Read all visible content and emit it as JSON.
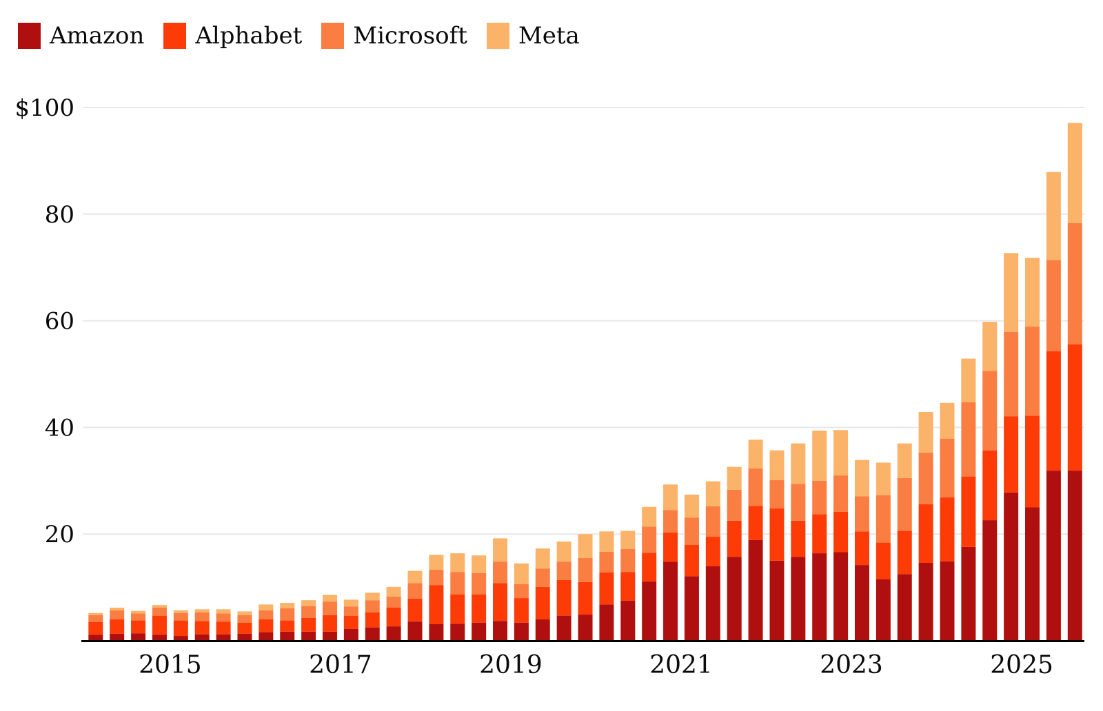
{
  "chart_data": {
    "type": "bar",
    "stacked": true,
    "title": "",
    "legend_position": "top-left",
    "grid": true,
    "ylim": [
      0,
      105
    ],
    "y_axis": {
      "tick_values": [
        20,
        40,
        60,
        80,
        100
      ],
      "tick_labels": [
        "20",
        "40",
        "60",
        "80",
        "$100"
      ]
    },
    "x_axis": {
      "tick_years": [
        2015,
        2017,
        2019,
        2021,
        2023,
        2025
      ],
      "tick_labels": [
        "2015",
        "2017",
        "2019",
        "2021",
        "2023",
        "2025"
      ]
    },
    "x": [
      "Q1 2014",
      "Q2 2014",
      "Q3 2014",
      "Q4 2014",
      "Q1 2015",
      "Q2 2015",
      "Q3 2015",
      "Q4 2015",
      "Q1 2016",
      "Q2 2016",
      "Q3 2016",
      "Q4 2016",
      "Q1 2017",
      "Q2 2017",
      "Q3 2017",
      "Q4 2017",
      "Q1 2018",
      "Q2 2018",
      "Q3 2018",
      "Q4 2018",
      "Q1 2019",
      "Q2 2019",
      "Q3 2019",
      "Q4 2019",
      "Q1 2020",
      "Q2 2020",
      "Q3 2020",
      "Q4 2020",
      "Q1 2021",
      "Q2 2021",
      "Q3 2021",
      "Q4 2021",
      "Q1 2022",
      "Q2 2022",
      "Q3 2022",
      "Q4 2022",
      "Q1 2023",
      "Q2 2023",
      "Q3 2023",
      "Q4 2023",
      "Q1 2024",
      "Q2 2024",
      "Q3 2024",
      "Q4 2024",
      "Q1 2025",
      "Q2 2025",
      "Q3 2025"
    ],
    "series": [
      {
        "name": "Amazon",
        "color": "#b00f0f",
        "values": [
          1.1,
          1.3,
          1.4,
          1.1,
          0.9,
          1.2,
          1.2,
          1.3,
          1.6,
          1.7,
          1.7,
          1.7,
          2.2,
          2.5,
          2.7,
          3.6,
          3.1,
          3.2,
          3.4,
          3.7,
          3.4,
          4.0,
          4.7,
          4.9,
          6.8,
          7.5,
          11.1,
          14.8,
          12.1,
          14.0,
          15.7,
          18.9,
          15.0,
          15.7,
          16.4,
          16.6,
          14.2,
          11.5,
          12.5,
          14.6,
          14.9,
          17.6,
          22.6,
          27.8,
          25.0,
          31.9,
          31.9
        ]
      },
      {
        "name": "Alphabet",
        "color": "#fd3b07",
        "values": [
          2.4,
          2.7,
          2.4,
          3.6,
          2.9,
          2.5,
          2.4,
          2.1,
          2.4,
          2.1,
          2.6,
          3.1,
          2.5,
          2.8,
          3.5,
          4.3,
          7.3,
          5.5,
          5.3,
          7.1,
          4.6,
          6.1,
          6.7,
          6.1,
          6.0,
          5.4,
          5.4,
          5.5,
          5.9,
          5.5,
          6.8,
          6.4,
          9.8,
          6.8,
          7.3,
          7.6,
          6.3,
          6.9,
          8.1,
          11.0,
          12.0,
          13.2,
          13.1,
          14.3,
          17.2,
          22.4,
          23.7
        ]
      },
      {
        "name": "Microsoft",
        "color": "#fa7d41",
        "values": [
          1.3,
          1.7,
          1.3,
          1.5,
          1.4,
          1.6,
          1.5,
          1.4,
          1.7,
          2.3,
          2.2,
          2.5,
          1.7,
          2.3,
          2.1,
          2.9,
          2.9,
          4.2,
          4.0,
          4.0,
          2.6,
          3.4,
          3.4,
          4.5,
          3.9,
          4.3,
          4.9,
          4.2,
          5.1,
          5.7,
          5.8,
          7.0,
          5.3,
          6.9,
          6.3,
          6.8,
          6.6,
          8.9,
          9.9,
          9.7,
          11.0,
          13.9,
          14.9,
          15.8,
          16.7,
          17.1,
          22.7
        ]
      },
      {
        "name": "Meta",
        "color": "#fbb269",
        "values": [
          0.4,
          0.5,
          0.5,
          0.5,
          0.5,
          0.6,
          0.8,
          0.7,
          1.1,
          1.0,
          1.1,
          1.3,
          1.3,
          1.4,
          1.8,
          2.3,
          2.8,
          3.5,
          3.3,
          4.4,
          3.9,
          3.8,
          3.8,
          4.5,
          3.8,
          3.4,
          3.7,
          4.8,
          4.3,
          4.7,
          4.3,
          5.4,
          5.6,
          7.6,
          9.4,
          8.5,
          6.8,
          6.1,
          6.5,
          7.6,
          6.7,
          8.2,
          9.2,
          14.8,
          12.9,
          16.5,
          18.8
        ]
      }
    ],
    "colors": {
      "grid_line": "#e8e8e8",
      "axis_line": "#000000",
      "text": "#0a0a0a",
      "background": "#ffffff"
    }
  }
}
